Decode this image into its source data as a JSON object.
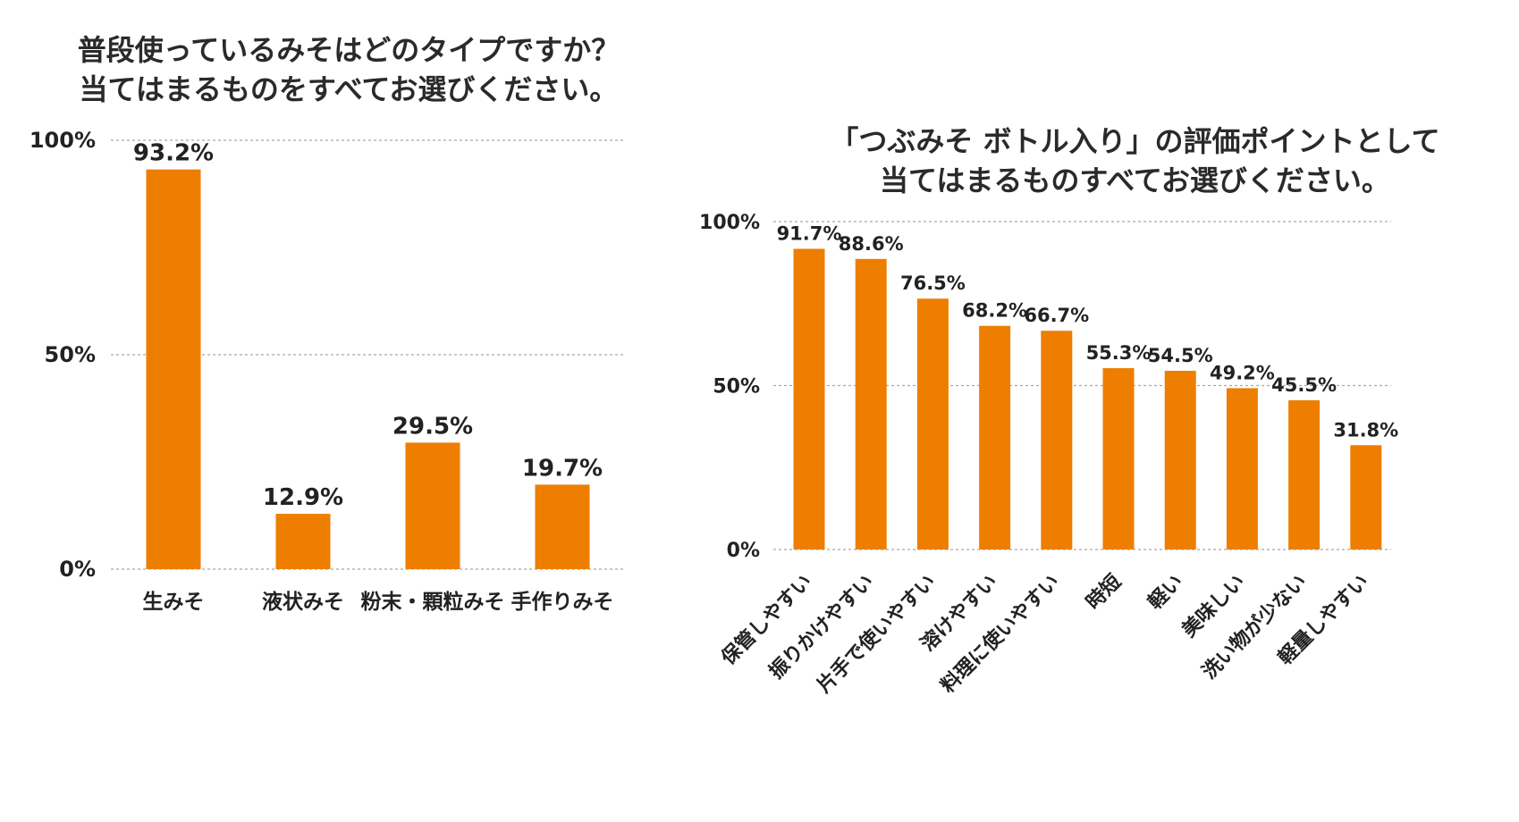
{
  "chart_data": [
    {
      "type": "bar",
      "title_lines": [
        "普段使っているみそはどのタイプですか？",
        "当てはまるものをすべてお選びください。"
      ],
      "categories": [
        "生みそ",
        "液状みそ",
        "粉末・顆粒みそ",
        "手作りみそ"
      ],
      "values": [
        93.2,
        12.9,
        29.5,
        19.7
      ],
      "value_labels": [
        "93.2%",
        "12.9%",
        "29.5%",
        "19.7%"
      ],
      "yticks": [
        0,
        50,
        100
      ],
      "ytick_labels": [
        "0%",
        "50%",
        "100%"
      ],
      "ylim": [
        0,
        100
      ],
      "grid": true,
      "bar_color": "#EE7E00",
      "grid_color": "#a8a8a8"
    },
    {
      "type": "bar",
      "title_lines": [
        "「つぶみそ ボトル入り」の評価ポイントとして",
        "当てはまるものすべてお選びください。"
      ],
      "categories": [
        "保管しやすい",
        "振りかけやすい",
        "片手で使いやすい",
        "溶けやすい",
        "料理に使いやすい",
        "時短",
        "軽い",
        "美味しい",
        "洗い物が少ない",
        "軽量しやすい"
      ],
      "values": [
        91.7,
        88.6,
        76.5,
        68.2,
        66.7,
        55.3,
        54.5,
        49.2,
        45.5,
        31.8
      ],
      "value_labels": [
        "91.7%",
        "88.6%",
        "76.5%",
        "68.2%",
        "66.7%",
        "55.3%",
        "54.5%",
        "49.2%",
        "45.5%",
        "31.8%"
      ],
      "yticks": [
        0,
        50,
        100
      ],
      "ytick_labels": [
        "0%",
        "50%",
        "100%"
      ],
      "ylim": [
        0,
        100
      ],
      "grid": true,
      "bar_color": "#EE7E00",
      "grid_color": "#a8a8a8"
    }
  ]
}
